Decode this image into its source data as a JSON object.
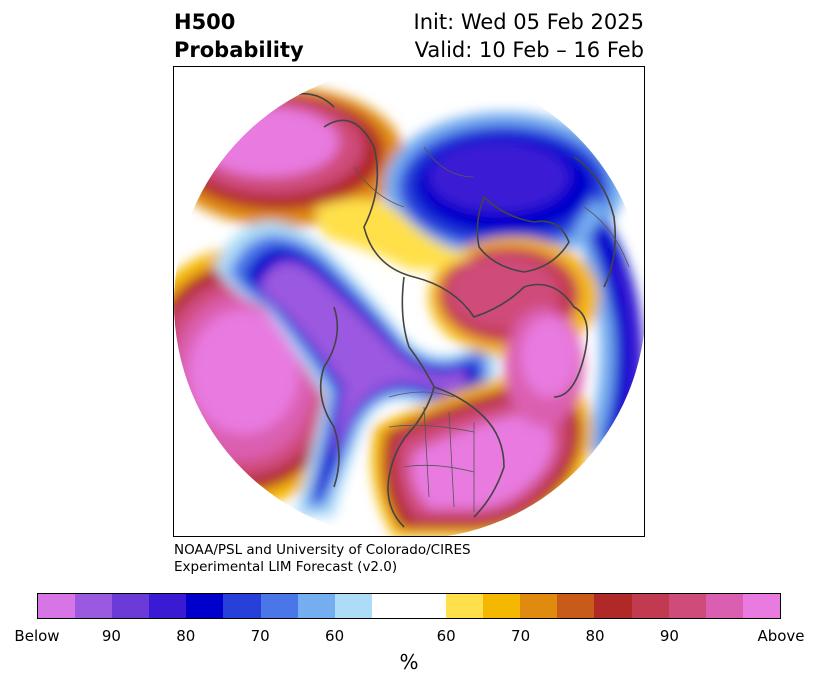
{
  "title": {
    "left_line1": "H500",
    "left_line2": "Probability",
    "right_line1": "Init: Wed 05 Feb 2025",
    "right_line2": "Valid: 10 Feb – 16 Feb"
  },
  "credit": {
    "line1": "NOAA/PSL and University of Colorado/CIRES",
    "line2": "Experimental LIM Forecast (v2.0)"
  },
  "colorbar": {
    "colors": [
      "#d774e6",
      "#9b59e0",
      "#6b3ad9",
      "#3b1ad4",
      "#0000cc",
      "#2640d9",
      "#4a76e8",
      "#74adf0",
      "#addcf8",
      "#ffffff",
      "#ffe04a",
      "#f5b800",
      "#e08a10",
      "#c85a1a",
      "#b02828",
      "#c23a50",
      "#cf4b7a",
      "#db5fb0",
      "#e87ae0"
    ],
    "ticks": [
      "Below",
      "90",
      "80",
      "70",
      "60",
      "60",
      "70",
      "80",
      "90",
      "Above"
    ],
    "unit": "%"
  },
  "map": {
    "type": "north-polar stereographic probability map",
    "ocean_color": "#ffffff",
    "coastline_color": "#444444"
  }
}
